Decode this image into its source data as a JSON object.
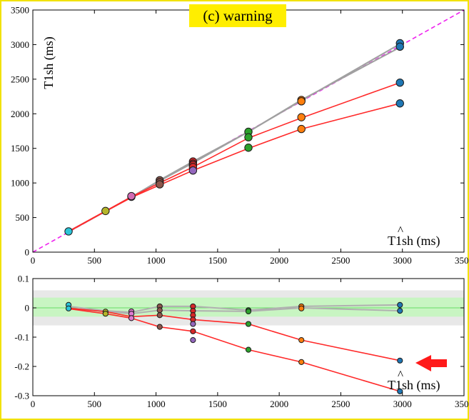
{
  "chart_data": [
    {
      "type": "scatter",
      "title": "(c) warning",
      "xlabel": "T1sh (ms)",
      "ylabel": "T1sh (ms)",
      "xlim": [
        0,
        3500
      ],
      "ylim": [
        0,
        3500
      ],
      "xticks": [
        0,
        500,
        1000,
        1500,
        2000,
        2500,
        3000,
        3500
      ],
      "yticks": [
        0,
        500,
        1000,
        1500,
        2000,
        2500,
        3000,
        3500
      ],
      "reference_line": {
        "style": "dashed",
        "color": "#ee22ee",
        "from": [
          0,
          0
        ],
        "to": [
          3500,
          3500
        ]
      },
      "series": [
        {
          "color": "#ff2a2a",
          "x": [
            290,
            590,
            800,
            1030,
            1300,
            1750,
            2180,
            2980
          ],
          "y": [
            295,
            590,
            790,
            970,
            1180,
            1500,
            1780,
            2150
          ]
        },
        {
          "color": "#ff2a2a",
          "x": [
            290,
            590,
            800,
            1030,
            1300,
            1750,
            2180,
            2980
          ],
          "y": [
            300,
            595,
            800,
            1000,
            1230,
            1650,
            1940,
            2450
          ]
        },
        {
          "color": "#a0a0a0",
          "x": [
            290,
            590,
            800,
            1030,
            1300,
            1750,
            2180,
            2980
          ],
          "y": [
            300,
            590,
            800,
            1030,
            1290,
            1740,
            2190,
            3010
          ]
        },
        {
          "color": "#a0a0a0",
          "x": [
            290,
            590,
            800,
            1030,
            1300,
            1750,
            2180,
            2980
          ],
          "y": [
            295,
            590,
            795,
            1040,
            1310,
            1740,
            2200,
            2960
          ]
        }
      ],
      "points": [
        {
          "x": 290,
          "y": 300,
          "color": "#2bc4d8"
        },
        {
          "x": 590,
          "y": 595,
          "color": "#b5b52a"
        },
        {
          "x": 800,
          "y": 800,
          "color": "#e07ad0"
        },
        {
          "x": 800,
          "y": 810,
          "color": "#d26bb4"
        },
        {
          "x": 1030,
          "y": 1040,
          "color": "#8c564b"
        },
        {
          "x": 1030,
          "y": 1010,
          "color": "#8c564b"
        },
        {
          "x": 1030,
          "y": 980,
          "color": "#8c564b"
        },
        {
          "x": 1300,
          "y": 1310,
          "color": "#d62728"
        },
        {
          "x": 1300,
          "y": 1280,
          "color": "#d62728"
        },
        {
          "x": 1300,
          "y": 1260,
          "color": "#d62728"
        },
        {
          "x": 1300,
          "y": 1230,
          "color": "#d62728"
        },
        {
          "x": 1300,
          "y": 1180,
          "color": "#9467bd"
        },
        {
          "x": 1750,
          "y": 1740,
          "color": "#2ca02c"
        },
        {
          "x": 1750,
          "y": 1660,
          "color": "#2ca02c"
        },
        {
          "x": 1750,
          "y": 1510,
          "color": "#2ca02c"
        },
        {
          "x": 2180,
          "y": 2200,
          "color": "#ff7f0e"
        },
        {
          "x": 2180,
          "y": 2180,
          "color": "#ff7f0e"
        },
        {
          "x": 2180,
          "y": 1950,
          "color": "#ff7f0e"
        },
        {
          "x": 2180,
          "y": 1780,
          "color": "#ff7f0e"
        },
        {
          "x": 2980,
          "y": 3020,
          "color": "#1f77b4"
        },
        {
          "x": 2980,
          "y": 2970,
          "color": "#1f77b4"
        },
        {
          "x": 2980,
          "y": 2450,
          "color": "#1f77b4"
        },
        {
          "x": 2980,
          "y": 2150,
          "color": "#1f77b4"
        }
      ]
    },
    {
      "type": "scatter",
      "xlabel": "T1sh (ms)",
      "xlim": [
        0,
        3500
      ],
      "ylim": [
        -0.3,
        0.1
      ],
      "xticks": [
        0,
        500,
        1000,
        1500,
        2000,
        2500,
        3000,
        3500
      ],
      "yticks": [
        -0.3,
        -0.2,
        -0.1,
        0,
        0.1
      ],
      "bands": [
        {
          "from": -0.06,
          "to": 0.06,
          "color": "#e8e8e8"
        },
        {
          "from": -0.03,
          "to": 0.035,
          "color": "#c8f5c2"
        }
      ],
      "reference_line": {
        "y": 0,
        "color": "#66dd66"
      },
      "series": [
        {
          "color": "#ff2a2a",
          "x": [
            290,
            590,
            800,
            1030,
            1300,
            1750,
            2180,
            2980
          ],
          "y": [
            -0.003,
            -0.02,
            -0.035,
            -0.065,
            -0.08,
            -0.143,
            -0.185,
            -0.285
          ]
        },
        {
          "color": "#ff2a2a",
          "x": [
            290,
            590,
            800,
            1030,
            1300,
            1750,
            2180,
            2980
          ],
          "y": [
            -0.001,
            -0.013,
            -0.03,
            -0.025,
            -0.04,
            -0.055,
            -0.11,
            -0.18
          ]
        },
        {
          "color": "#b0b0b0",
          "x": [
            290,
            590,
            800,
            1030,
            1300,
            1750,
            2180,
            2980
          ],
          "y": [
            0.005,
            -0.01,
            -0.015,
            0.005,
            0.005,
            -0.008,
            0.005,
            0.01
          ]
        },
        {
          "color": "#b0b0b0",
          "x": [
            290,
            590,
            800,
            1030,
            1300,
            1750,
            2180,
            2980
          ],
          "y": [
            -0.002,
            -0.012,
            -0.02,
            -0.008,
            -0.01,
            -0.012,
            0,
            -0.01
          ]
        }
      ],
      "points": [
        {
          "x": 290,
          "y": 0.01,
          "color": "#2bc4d8"
        },
        {
          "x": 290,
          "y": -0.002,
          "color": "#2bc4d8"
        },
        {
          "x": 590,
          "y": -0.013,
          "color": "#b5b52a"
        },
        {
          "x": 590,
          "y": -0.02,
          "color": "#b5b52a"
        },
        {
          "x": 800,
          "y": -0.012,
          "color": "#e07ad0"
        },
        {
          "x": 800,
          "y": -0.02,
          "color": "#e07ad0"
        },
        {
          "x": 800,
          "y": -0.035,
          "color": "#e07ad0"
        },
        {
          "x": 1030,
          "y": 0.005,
          "color": "#8c564b"
        },
        {
          "x": 1030,
          "y": -0.008,
          "color": "#8c564b"
        },
        {
          "x": 1030,
          "y": -0.025,
          "color": "#8c564b"
        },
        {
          "x": 1030,
          "y": -0.065,
          "color": "#8c564b"
        },
        {
          "x": 1300,
          "y": 0.005,
          "color": "#d62728"
        },
        {
          "x": 1300,
          "y": -0.01,
          "color": "#d62728"
        },
        {
          "x": 1300,
          "y": -0.025,
          "color": "#d62728"
        },
        {
          "x": 1300,
          "y": -0.04,
          "color": "#d62728"
        },
        {
          "x": 1300,
          "y": -0.055,
          "color": "#9467bd"
        },
        {
          "x": 1300,
          "y": -0.08,
          "color": "#d62728"
        },
        {
          "x": 1300,
          "y": -0.11,
          "color": "#9467bd"
        },
        {
          "x": 1750,
          "y": -0.008,
          "color": "#2ca02c"
        },
        {
          "x": 1750,
          "y": -0.012,
          "color": "#2ca02c"
        },
        {
          "x": 1750,
          "y": -0.055,
          "color": "#2ca02c"
        },
        {
          "x": 1750,
          "y": -0.143,
          "color": "#2ca02c"
        },
        {
          "x": 2180,
          "y": 0.005,
          "color": "#ff7f0e"
        },
        {
          "x": 2180,
          "y": -0.002,
          "color": "#ff7f0e"
        },
        {
          "x": 2180,
          "y": -0.11,
          "color": "#ff7f0e"
        },
        {
          "x": 2180,
          "y": -0.185,
          "color": "#ff7f0e"
        },
        {
          "x": 2980,
          "y": 0.01,
          "color": "#1f77b4"
        },
        {
          "x": 2980,
          "y": -0.01,
          "color": "#1f77b4"
        },
        {
          "x": 2980,
          "y": -0.18,
          "color": "#1f77b4"
        },
        {
          "x": 2980,
          "y": -0.285,
          "color": "#1f77b4"
        }
      ],
      "annotation": {
        "shape": "arrow",
        "color": "#ff1a1a",
        "points_at": [
          2980,
          -0.18
        ]
      }
    }
  ]
}
